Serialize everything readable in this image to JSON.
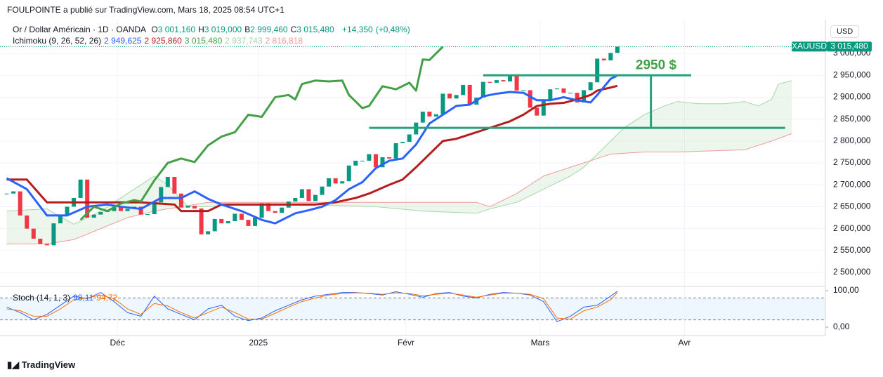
{
  "header": {
    "publisher": "FOULPOINTE a publié sur TradingView.com, Mars 18, 2025 08:54 UTC+1",
    "symbol": "Or / Dollar Américain · 1D · OANDA",
    "ohlc_letters": [
      "O",
      "H",
      "B",
      "C"
    ],
    "ohlc": [
      3001.16,
      3019,
      2999.46,
      3015.48
    ],
    "ohlc_labels": [
      "3 001,160",
      "3 019,000",
      "2 999,460",
      "3 015,480"
    ],
    "change": 14.35,
    "change_label": "+14,350",
    "change_pct": 0.48,
    "change_pct_label": "(+0,48%)",
    "currency": "USD",
    "ticker": "XAUUSD",
    "brand": "TradingView"
  },
  "chart_data": [
    {
      "type": "candlestick",
      "indicator": "Ichimoku (9, 26, 52, 26)",
      "up_color": "#089981",
      "down_color": "#f23645",
      "close": [
        2680,
        2685,
        2630,
        2600,
        2577,
        2565,
        2562,
        2612,
        2632,
        2650,
        2670,
        2712,
        2625,
        2632,
        2638,
        2640,
        2650,
        2640,
        2645,
        2650,
        2632,
        2633,
        2660,
        2695,
        2718,
        2680,
        2648,
        2652,
        2646,
        2587,
        2594,
        2622,
        2612,
        2617,
        2634,
        2620,
        2606,
        2625,
        2658,
        2640,
        2636,
        2648,
        2662,
        2670,
        2690,
        2663,
        2677,
        2696,
        2715,
        2703,
        2708,
        2744,
        2755,
        2755,
        2770,
        2740,
        2763,
        2760,
        2795,
        2798,
        2815,
        2842,
        2867,
        2856,
        2861,
        2908,
        2897,
        2905,
        2928,
        2883,
        2899,
        2935,
        2933,
        2939,
        2936,
        2952,
        2915,
        2916,
        2876,
        2858,
        2893,
        2918,
        2920,
        2910,
        2910,
        2888,
        2916,
        2934,
        2988,
        2984,
        3001,
        3015.48
      ],
      "series": [
        {
          "color": "#a5d6a7",
          "x": [
            0,
            6,
            10,
            14,
            18,
            22,
            24,
            27,
            30,
            35,
            45,
            55,
            62,
            70,
            72,
            76,
            80,
            84,
            86,
            88,
            90,
            92,
            95,
            98,
            100,
            103,
            107,
            110,
            112,
            114,
            115,
            117
          ],
          "values": [
            2640,
            2645,
            2610,
            2640,
            2680,
            2720,
            2700,
            2650,
            2650,
            2655,
            2655,
            2650,
            2640,
            2635,
            2645,
            2660,
            2690,
            2720,
            2740,
            2770,
            2800,
            2830,
            2860,
            2880,
            2890,
            2885,
            2885,
            2890,
            2880,
            2895,
            2930,
            2937.743
          ],
          "value_label": "2 937,743"
        },
        {
          "color": "#ef9a9a",
          "x": [
            0,
            6,
            10,
            14,
            18,
            22,
            26,
            30,
            40,
            50,
            60,
            64,
            70,
            72,
            76,
            78,
            80,
            84,
            88,
            90,
            95,
            100,
            110,
            114,
            117
          ],
          "values": [
            2565,
            2565,
            2575,
            2600,
            2625,
            2640,
            2650,
            2660,
            2660,
            2660,
            2660,
            2660,
            2660,
            2650,
            2680,
            2700,
            2720,
            2740,
            2760,
            2770,
            2775,
            2775,
            2780,
            2800,
            2816.818
          ],
          "value_label": "2 816,818"
        },
        {
          "color": "#b71c1c",
          "x": [
            0,
            3,
            6,
            12,
            20,
            25,
            26,
            30,
            32,
            40,
            46,
            49,
            52,
            54,
            57,
            59,
            61,
            63,
            65,
            67,
            69,
            71,
            73,
            75,
            77,
            79,
            81,
            83,
            85,
            87,
            88,
            90,
            91
          ],
          "values": [
            2712,
            2712,
            2660,
            2660,
            2660,
            2655,
            2640,
            2640,
            2655,
            2655,
            2655,
            2660,
            2670,
            2680,
            2700,
            2712,
            2740,
            2770,
            2800,
            2805,
            2815,
            2825,
            2835,
            2845,
            2860,
            2880,
            2885,
            2887,
            2895,
            2905,
            2915,
            2922,
            2925.86
          ],
          "value_label": "2 925,860"
        },
        {
          "color": "#2962ff",
          "x": [
            0,
            3,
            6,
            9,
            12,
            15,
            17,
            20,
            23,
            26,
            28,
            30,
            32,
            35,
            38,
            40,
            43,
            45,
            47,
            49,
            51,
            53,
            55,
            57,
            59,
            61,
            63,
            65,
            67,
            69,
            71,
            73,
            75,
            77,
            79,
            81,
            83,
            85,
            87,
            88,
            90,
            91
          ],
          "values": [
            2715,
            2690,
            2630,
            2630,
            2650,
            2655,
            2650,
            2645,
            2670,
            2670,
            2685,
            2668,
            2655,
            2640,
            2620,
            2612,
            2635,
            2642,
            2650,
            2665,
            2690,
            2706,
            2738,
            2755,
            2760,
            2792,
            2840,
            2860,
            2880,
            2883,
            2902,
            2908,
            2912,
            2910,
            2893,
            2893,
            2900,
            2893,
            2888,
            2905,
            2942,
            2949.625
          ],
          "value_label": "2 949,625"
        },
        {
          "color": "#43a047",
          "x": [
            11,
            13,
            15,
            17,
            19,
            20,
            22,
            24,
            26,
            28,
            30,
            32,
            34,
            36,
            38,
            40,
            42,
            43,
            44,
            46,
            48,
            50,
            51,
            53,
            54,
            56,
            58,
            60,
            61,
            62,
            63,
            65
          ],
          "values": [
            2620,
            2650,
            2640,
            2657,
            2665,
            2662,
            2710,
            2750,
            2760,
            2752,
            2790,
            2810,
            2820,
            2860,
            2855,
            2900,
            2905,
            2895,
            2930,
            2938,
            2936,
            2938,
            2905,
            2875,
            2880,
            2925,
            2918,
            2933,
            2915,
            2986,
            2985,
            3015.48
          ],
          "value_label": "3 015,480"
        }
      ],
      "xlim": [
        -1,
        122
      ],
      "xticks": [
        {
          "value": 16.5,
          "label": "Déc"
        },
        {
          "value": 37.5,
          "label": "2025"
        },
        {
          "value": 59.5,
          "label": "Févr"
        },
        {
          "value": 79.5,
          "label": "Mars"
        },
        {
          "value": 101,
          "label": "Avr"
        }
      ],
      "ylim": [
        2468,
        3077
      ],
      "yticks": [
        {
          "value": 2500,
          "label": "2 500,000"
        },
        {
          "value": 2550,
          "label": "2 550,000"
        },
        {
          "value": 2600,
          "label": "2 600,000"
        },
        {
          "value": 2650,
          "label": "2 650,000"
        },
        {
          "value": 2700,
          "label": "2 700,000"
        },
        {
          "value": 2750,
          "label": "2 750,000"
        },
        {
          "value": 2800,
          "label": "2 800,000"
        },
        {
          "value": 2850,
          "label": "2 850,000"
        },
        {
          "value": 2900,
          "label": "2 900,000"
        },
        {
          "value": 2950,
          "label": "2 950,000"
        },
        {
          "value": 3000,
          "label": "3 000,000"
        }
      ],
      "annotation": {
        "text": "2950 $",
        "color": "#26a17b",
        "hlines": [
          {
            "y": 2950,
            "x": [
              71,
              102
            ]
          },
          {
            "y": 2830,
            "x": [
              54,
              116
            ]
          }
        ],
        "vline": {
          "x": 96,
          "y": [
            2830,
            2950
          ]
        }
      }
    },
    {
      "type": "line",
      "indicator": "Stoch (14, 1, 3)",
      "series": [
        {
          "color": "#2962ff",
          "x": [
            0,
            2,
            4,
            6,
            8,
            10,
            12,
            14,
            16,
            18,
            20,
            22,
            24,
            26,
            28,
            30,
            32,
            34,
            36,
            38,
            40,
            42,
            44,
            46,
            48,
            50,
            52,
            54,
            56,
            58,
            60,
            62,
            64,
            66,
            68,
            70,
            72,
            74,
            76,
            78,
            80,
            82,
            84,
            86,
            88,
            90,
            91
          ],
          "values": [
            55,
            40,
            20,
            35,
            60,
            85,
            78,
            95,
            70,
            40,
            30,
            85,
            50,
            35,
            20,
            50,
            60,
            30,
            18,
            25,
            45,
            60,
            75,
            85,
            90,
            95,
            95,
            92,
            88,
            97,
            90,
            82,
            92,
            95,
            85,
            80,
            90,
            95,
            93,
            88,
            70,
            15,
            30,
            55,
            60,
            85,
            98.11
          ],
          "value_label": "98,11"
        },
        {
          "color": "#ff6d00",
          "x": [
            0,
            2,
            4,
            6,
            8,
            10,
            12,
            14,
            16,
            18,
            20,
            22,
            24,
            26,
            28,
            30,
            32,
            34,
            36,
            38,
            40,
            42,
            44,
            46,
            48,
            50,
            52,
            54,
            56,
            58,
            60,
            62,
            64,
            66,
            68,
            70,
            72,
            74,
            76,
            78,
            80,
            82,
            84,
            86,
            88,
            90,
            91
          ],
          "values": [
            50,
            45,
            30,
            30,
            50,
            75,
            80,
            88,
            78,
            50,
            35,
            65,
            58,
            40,
            25,
            40,
            55,
            40,
            22,
            22,
            38,
            55,
            70,
            80,
            88,
            92,
            94,
            93,
            90,
            94,
            92,
            86,
            90,
            93,
            88,
            82,
            88,
            93,
            93,
            90,
            78,
            25,
            22,
            45,
            55,
            75,
            94.72
          ],
          "value_label": "94,72"
        }
      ],
      "ylim": [
        -23,
        111.5
      ],
      "yticks": [
        {
          "value": 100,
          "label": "100,00"
        },
        {
          "value": 0,
          "label": "0,00"
        }
      ],
      "bands": [
        20,
        80
      ]
    }
  ]
}
